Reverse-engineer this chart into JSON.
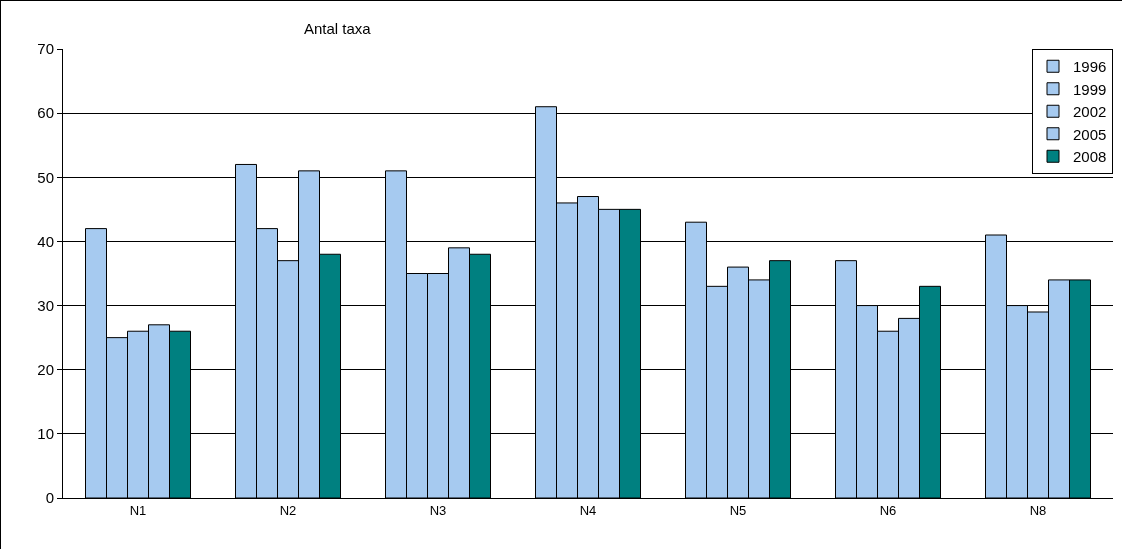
{
  "chart_data": {
    "type": "bar",
    "title": "Antal taxa",
    "categories": [
      "N1",
      "N2",
      "N3",
      "N4",
      "N5",
      "N6",
      "N8"
    ],
    "series": [
      {
        "name": "1996",
        "color": "#a6caf0",
        "values": [
          42,
          52,
          51,
          61,
          43,
          37,
          41
        ]
      },
      {
        "name": "1999",
        "color": "#a6caf0",
        "values": [
          25,
          42,
          35,
          46,
          33,
          30,
          30
        ]
      },
      {
        "name": "2002",
        "color": "#a6caf0",
        "values": [
          26,
          37,
          35,
          47,
          36,
          26,
          29
        ]
      },
      {
        "name": "2005",
        "color": "#a6caf0",
        "values": [
          27,
          51,
          39,
          45,
          34,
          28,
          34
        ]
      },
      {
        "name": "2008",
        "color": "#008080",
        "values": [
          26,
          38,
          38,
          45,
          37,
          33,
          34
        ]
      }
    ],
    "ylim": [
      0,
      70
    ],
    "yticks": [
      0,
      10,
      20,
      30,
      40,
      50,
      60,
      70
    ],
    "grid": "y",
    "legend": "top right"
  }
}
